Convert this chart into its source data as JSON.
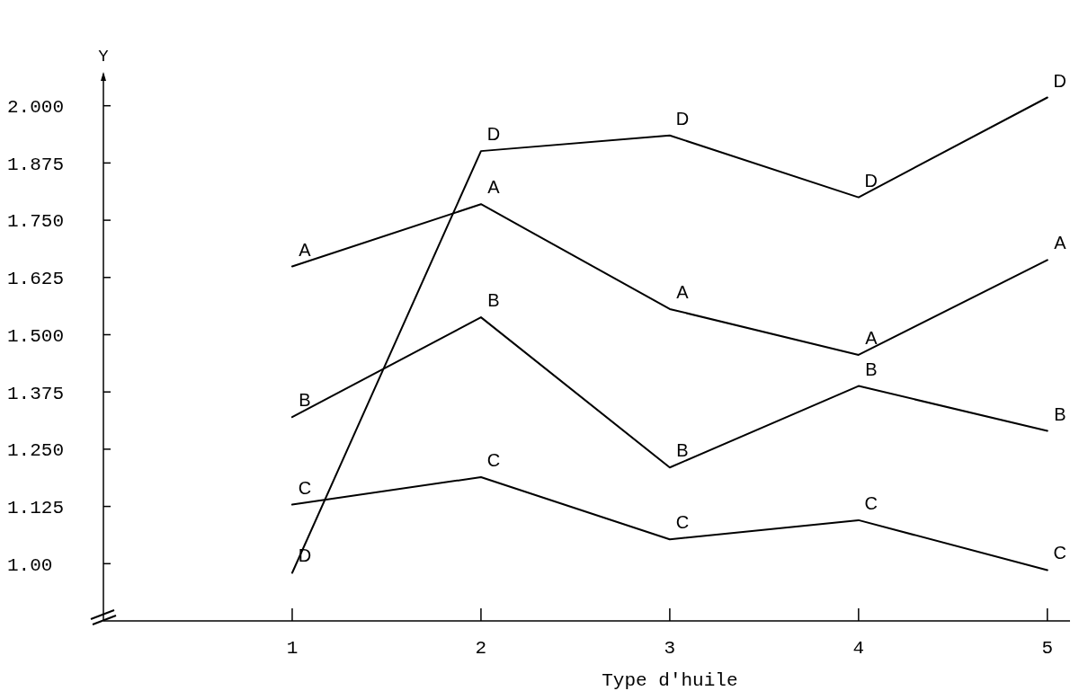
{
  "chart_data": {
    "type": "line",
    "xlabel": "Type d'huile",
    "ylabel": "Y",
    "x": [
      1,
      2,
      3,
      4,
      5
    ],
    "xlim": [
      0,
      5.12
    ],
    "xticks": [
      1,
      2,
      3,
      4,
      5
    ],
    "ylim": [
      0.875,
      2.07
    ],
    "yticks": [
      {
        "value": 1,
        "label": "1.00"
      },
      {
        "value": 1.125,
        "label": "1.125"
      },
      {
        "value": 1.25,
        "label": "1.250"
      },
      {
        "value": 1.375,
        "label": "1.375"
      },
      {
        "value": 1.5,
        "label": "1.500"
      },
      {
        "value": 1.625,
        "label": "1.625"
      },
      {
        "value": 1.75,
        "label": "1.750"
      },
      {
        "value": 1.875,
        "label": "1.875"
      },
      {
        "value": 2,
        "label": "2.000"
      }
    ],
    "series": [
      {
        "name": "A",
        "color": "#000000",
        "values": [
          1.649,
          1.785,
          1.556,
          1.456,
          1.663
        ]
      },
      {
        "name": "B",
        "color": "#000000",
        "values": [
          1.32,
          1.538,
          1.21,
          1.388,
          1.29
        ]
      },
      {
        "name": "C",
        "color": "#000000",
        "values": [
          1.129,
          1.189,
          1.053,
          1.095,
          0.986
        ]
      },
      {
        "name": "D",
        "color": "#000000",
        "values": [
          0.98,
          1.901,
          1.935,
          1.8,
          2.018
        ]
      }
    ],
    "grid": false,
    "legend": false,
    "marker": "none",
    "line_style": "solid"
  }
}
